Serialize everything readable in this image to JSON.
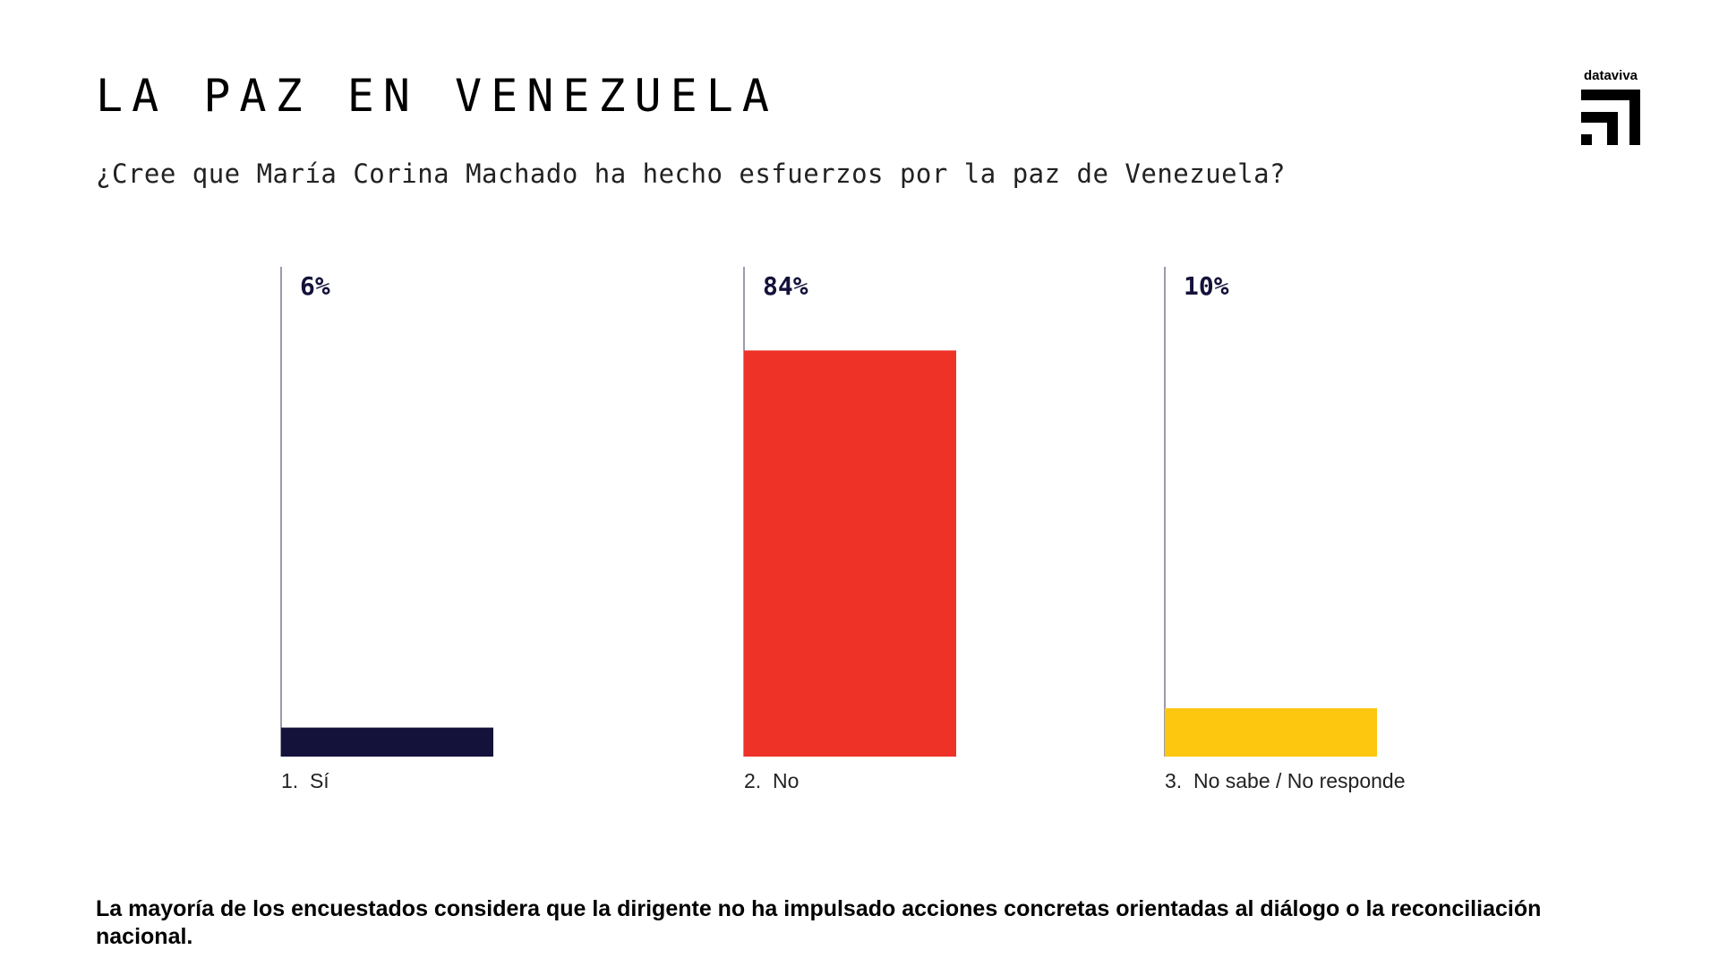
{
  "header": {
    "title": "LA PAZ EN VENEZUELA",
    "subtitle": "¿Cree que María Corina Machado ha hecho esfuerzos por la paz de Venezuela?"
  },
  "logo": {
    "text": "dataviva",
    "icon": "dataviva-logo-icon"
  },
  "chart_data": {
    "type": "bar",
    "title": "¿Cree que María Corina Machado ha hecho esfuerzos por la paz de Venezuela?",
    "categories": [
      "1.  Sí",
      "2.  No",
      "3.  No sabe / No responde"
    ],
    "values": [
      6,
      84,
      10
    ],
    "value_labels": [
      "6%",
      "84%",
      "10%"
    ],
    "colors": [
      "#14123a",
      "#ef3228",
      "#fdc60f"
    ],
    "xlabel": "",
    "ylabel": "",
    "ylim": [
      0,
      100
    ],
    "unit": "%",
    "grid": false,
    "legend": "none"
  },
  "footnote": "La mayoría de los encuestados considera que la dirigente no ha impulsado acciones concretas orientadas al diálogo o la reconciliación nacional."
}
